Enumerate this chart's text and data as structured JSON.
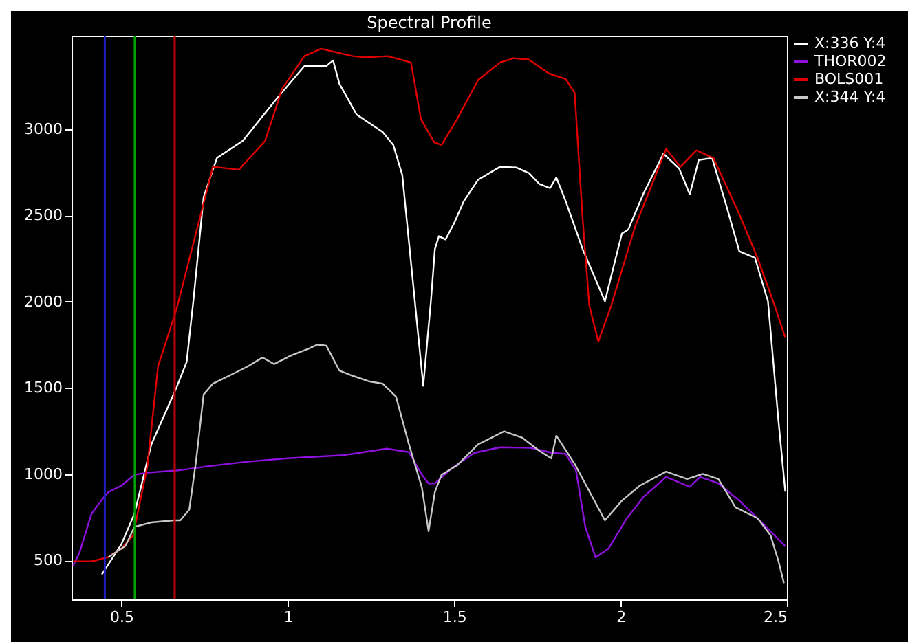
{
  "chart_data": {
    "type": "line",
    "title": "Spectral Profile",
    "xlim": [
      0.35,
      2.5
    ],
    "xticks": [
      0.5,
      1.0,
      1.5,
      2.0,
      2.5
    ],
    "ylim": [
      275,
      3540
    ],
    "yticks": [
      500,
      1000,
      1500,
      2000,
      2500,
      3000
    ],
    "grid": false,
    "legend": "top right",
    "marker": "none",
    "line_style": "solid",
    "ref_lines": [
      {
        "axis": "x",
        "value": 0.45,
        "color": "#2020c0"
      },
      {
        "axis": "x",
        "value": 0.54,
        "color": "#00a000"
      },
      {
        "axis": "x",
        "value": 0.66,
        "color": "#c00000"
      }
    ],
    "series": [
      {
        "name": "X:336 Y:4",
        "color": "#ffffff",
        "x": [
          0.441,
          0.5,
          0.539,
          0.59,
          0.665,
          0.696,
          0.716,
          0.747,
          0.787,
          0.865,
          0.959,
          1.05,
          1.116,
          1.136,
          1.155,
          1.207,
          1.285,
          1.317,
          1.344,
          1.383,
          1.407,
          1.43,
          1.442,
          1.454,
          1.474,
          1.5,
          1.529,
          1.572,
          1.638,
          1.686,
          1.725,
          1.756,
          1.788,
          1.807,
          1.835,
          1.886,
          1.953,
          2.004,
          2.023,
          2.07,
          2.129,
          2.176,
          2.208,
          2.235,
          2.275,
          2.318,
          2.357,
          2.404,
          2.443,
          2.475,
          2.495
        ],
        "values": [
          420,
          595,
          771,
          1173,
          1500,
          1650,
          2002,
          2606,
          2832,
          2932,
          3158,
          3365,
          3365,
          3397,
          3262,
          3083,
          2983,
          2907,
          2733,
          1978,
          1512,
          2002,
          2304,
          2379,
          2360,
          2455,
          2582,
          2706,
          2781,
          2777,
          2744,
          2681,
          2658,
          2719,
          2582,
          2304,
          2002,
          2394,
          2417,
          2631,
          2857,
          2771,
          2621,
          2820,
          2832,
          2555,
          2291,
          2253,
          2002,
          1300,
          900
        ]
      },
      {
        "name": "THOR002",
        "color": "#9010e0",
        "x": [
          0.355,
          0.374,
          0.41,
          0.429,
          0.449,
          0.461,
          0.5,
          0.539,
          0.578,
          0.669,
          0.763,
          0.88,
          0.999,
          1.167,
          1.297,
          1.364,
          1.403,
          1.423,
          1.442,
          1.493,
          1.56,
          1.638,
          1.729,
          1.796,
          1.835,
          1.866,
          1.894,
          1.925,
          1.964,
          2.019,
          2.07,
          2.137,
          2.208,
          2.239,
          2.294,
          2.357,
          2.424,
          2.495
        ],
        "values": [
          471,
          546,
          771,
          821,
          871,
          897,
          934,
          997,
          1009,
          1022,
          1047,
          1073,
          1092,
          1110,
          1148,
          1128,
          997,
          947,
          947,
          1035,
          1123,
          1156,
          1153,
          1123,
          1118,
          1022,
          695,
          518,
          570,
          745,
          871,
          984,
          927,
          984,
          947,
          847,
          721,
          583
        ]
      },
      {
        "name": "BOLS001",
        "color": "#e00000",
        "x": [
          0.355,
          0.41,
          0.461,
          0.5,
          0.535,
          0.578,
          0.61,
          0.665,
          0.775,
          0.853,
          0.932,
          0.983,
          1.05,
          1.1,
          1.195,
          1.234,
          1.3,
          1.37,
          1.4,
          1.44,
          1.462,
          1.509,
          1.572,
          1.638,
          1.678,
          1.725,
          1.784,
          1.835,
          1.862,
          1.886,
          1.906,
          1.933,
          1.972,
          2.043,
          2.137,
          2.18,
          2.228,
          2.279,
          2.357,
          2.412,
          2.463,
          2.495
        ],
        "values": [
          495,
          495,
          520,
          570,
          645,
          1047,
          1625,
          1952,
          2781,
          2764,
          2932,
          3234,
          3422,
          3465,
          3422,
          3415,
          3422,
          3385,
          3058,
          2922,
          2907,
          3058,
          3284,
          3385,
          3410,
          3402,
          3322,
          3290,
          3209,
          2480,
          1978,
          1768,
          1978,
          2431,
          2884,
          2781,
          2876,
          2832,
          2506,
          2251,
          1978,
          1791
        ]
      },
      {
        "name": "X:344 Y:4",
        "color": "#c8c8c8",
        "x": [
          0.461,
          0.512,
          0.539,
          0.59,
          0.657,
          0.677,
          0.704,
          0.724,
          0.747,
          0.775,
          0.842,
          0.88,
          0.924,
          0.959,
          1.01,
          1.061,
          1.089,
          1.116,
          1.155,
          1.195,
          1.246,
          1.285,
          1.325,
          1.364,
          1.403,
          1.423,
          1.442,
          1.462,
          1.509,
          1.572,
          1.65,
          1.705,
          1.756,
          1.792,
          1.807,
          1.862,
          1.953,
          2.004,
          2.058,
          2.137,
          2.2,
          2.247,
          2.294,
          2.345,
          2.412,
          2.451,
          2.475,
          2.491
        ],
        "values": [
          520,
          585,
          695,
          721,
          733,
          733,
          796,
          1073,
          1462,
          1525,
          1588,
          1625,
          1676,
          1638,
          1688,
          1726,
          1751,
          1744,
          1600,
          1570,
          1537,
          1525,
          1450,
          1173,
          922,
          670,
          897,
          997,
          1052,
          1173,
          1248,
          1211,
          1135,
          1092,
          1223,
          1060,
          733,
          847,
          934,
          1015,
          972,
          1002,
          972,
          809,
          745,
          645,
          494,
          369
        ]
      }
    ]
  }
}
